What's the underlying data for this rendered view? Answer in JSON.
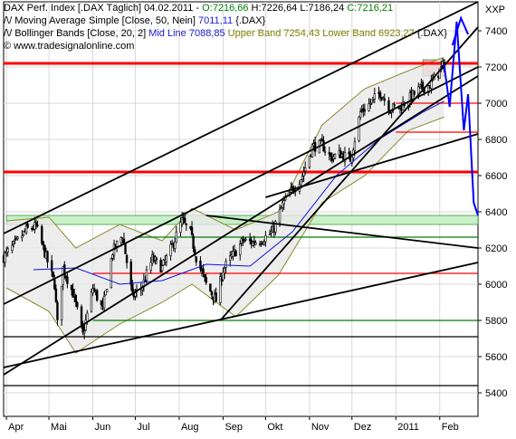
{
  "legend": {
    "line1": {
      "name": "DAX Perf. Index [.DAX Täglich] 04.02.2011 - ",
      "open": "O:7216,66",
      "hl": " H:7226,64 L:7186,24 ",
      "close": "C:7216,21"
    },
    "line2": {
      "name": "/\\/ Moving Average Simple [Close, 50, Nein] ",
      "value": "7011,11",
      "suffix": " {.DAX}"
    },
    "line3": {
      "name": "/\\/ Bollinger Bands [Close, 20, 2] ",
      "mid": "Mid Line 7088,85",
      "upper": " Upper Band 7254,43",
      "lower": " Lower Band 6923,27",
      "suffix": " {.DAX}"
    },
    "line4": "© www.tradesignalonline.com"
  },
  "colors": {
    "candle": "#000000",
    "band_fill": "#e8e8e8",
    "band_line": "#8a8a30",
    "sma": "#1010e0",
    "support_red": "#ff0000",
    "support_green": "#008000",
    "green_zone": "#c8f0c8",
    "trend_black": "#000000",
    "forecast": "#0000ff",
    "pink_zone": "#f4b0b0",
    "grid": "#d8d8d8"
  },
  "chart_data": {
    "type": "candlestick",
    "instrument": "DAX Perf. Index",
    "y_axis": {
      "label": "XXP",
      "ticks": [
        5400,
        5600,
        5800,
        6000,
        6200,
        6400,
        6600,
        6800,
        7000,
        7200,
        7400
      ],
      "tick_labels": [
        "5400",
        "5600",
        "5800",
        "6000",
        "6200",
        "6400",
        "6600",
        "6800",
        "7000",
        "7200",
        "7400"
      ],
      "ylim": [
        5270,
        7560
      ]
    },
    "x_axis": {
      "labels": [
        "Apr",
        "Mai",
        "Jun",
        "Jul",
        "Aug",
        "Sep",
        "Okt",
        "Nov",
        "Dez",
        "2011",
        "Feb"
      ]
    },
    "close_path": [
      [
        "2010-03-30",
        6150
      ],
      [
        "2010-04-08",
        6230
      ],
      [
        "2010-04-15",
        6300
      ],
      [
        "2010-04-22",
        6320
      ],
      [
        "2010-04-29",
        6150
      ],
      [
        "2010-05-05",
        6000
      ],
      [
        "2010-05-07",
        5780
      ],
      [
        "2010-05-11",
        6090
      ],
      [
        "2010-05-18",
        5950
      ],
      [
        "2010-05-25",
        5720
      ],
      [
        "2010-06-01",
        5980
      ],
      [
        "2010-06-08",
        5860
      ],
      [
        "2010-06-15",
        6180
      ],
      [
        "2010-06-22",
        6270
      ],
      [
        "2010-06-29",
        5930
      ],
      [
        "2010-07-06",
        5990
      ],
      [
        "2010-07-13",
        6140
      ],
      [
        "2010-07-20",
        6090
      ],
      [
        "2010-07-27",
        6210
      ],
      [
        "2010-08-03",
        6350
      ],
      [
        "2010-08-09",
        6280
      ],
      [
        "2010-08-13",
        6150
      ],
      [
        "2010-08-20",
        6000
      ],
      [
        "2010-08-27",
        5910
      ],
      [
        "2010-09-01",
        6080
      ],
      [
        "2010-09-08",
        6160
      ],
      [
        "2010-09-15",
        6240
      ],
      [
        "2010-09-22",
        6230
      ],
      [
        "2010-09-29",
        6250
      ],
      [
        "2010-10-06",
        6290
      ],
      [
        "2010-10-13",
        6440
      ],
      [
        "2010-10-20",
        6520
      ],
      [
        "2010-10-27",
        6600
      ],
      [
        "2010-11-03",
        6760
      ],
      [
        "2010-11-10",
        6770
      ],
      [
        "2010-11-16",
        6700
      ],
      [
        "2010-11-23",
        6720
      ],
      [
        "2010-11-30",
        6690
      ],
      [
        "2010-12-07",
        6950
      ],
      [
        "2010-12-14",
        7000
      ],
      [
        "2010-12-21",
        7060
      ],
      [
        "2010-12-28",
        6970
      ],
      [
        "2011-01-04",
        6980
      ],
      [
        "2011-01-11",
        7030
      ],
      [
        "2011-01-18",
        7080
      ],
      [
        "2011-01-25",
        7100
      ],
      [
        "2011-02-01",
        7180
      ],
      [
        "2011-02-04",
        7216
      ]
    ],
    "sma_path": [
      [
        "2010-04-20",
        6080
      ],
      [
        "2010-05-20",
        6090
      ],
      [
        "2010-06-20",
        6000
      ],
      [
        "2010-07-20",
        6020
      ],
      [
        "2010-08-20",
        6110
      ],
      [
        "2010-09-20",
        6100
      ],
      [
        "2010-10-20",
        6290
      ],
      [
        "2010-11-20",
        6600
      ],
      [
        "2010-12-20",
        6800
      ],
      [
        "2011-01-20",
        6950
      ],
      [
        "2011-02-04",
        7011
      ]
    ],
    "bollinger_upper": [
      [
        "2010-04-01",
        6350
      ],
      [
        "2010-05-01",
        6370
      ],
      [
        "2010-05-20",
        6200
      ],
      [
        "2010-06-20",
        6330
      ],
      [
        "2010-07-20",
        6240
      ],
      [
        "2010-08-10",
        6420
      ],
      [
        "2010-09-10",
        6300
      ],
      [
        "2010-10-10",
        6400
      ],
      [
        "2010-11-10",
        6880
      ],
      [
        "2010-12-10",
        7080
      ],
      [
        "2011-01-10",
        7180
      ],
      [
        "2011-02-04",
        7254
      ]
    ],
    "bollinger_lower": [
      [
        "2010-04-01",
        5980
      ],
      [
        "2010-05-01",
        5850
      ],
      [
        "2010-05-20",
        5620
      ],
      [
        "2010-06-20",
        5780
      ],
      [
        "2010-07-20",
        5900
      ],
      [
        "2010-08-10",
        6000
      ],
      [
        "2010-09-10",
        5820
      ],
      [
        "2010-10-10",
        6050
      ],
      [
        "2010-11-10",
        6450
      ],
      [
        "2010-12-10",
        6600
      ],
      [
        "2011-01-10",
        6850
      ],
      [
        "2011-02-04",
        6923
      ]
    ],
    "horizontal_lines": [
      {
        "y": 7220,
        "color": "#ff0000",
        "width": "thick"
      },
      {
        "y": 6620,
        "color": "#ff0000",
        "width": "thick"
      },
      {
        "y": 7000,
        "color": "#ff0000",
        "width": "thin",
        "x0": "2011-01-01"
      },
      {
        "y": 6840,
        "color": "#ff0000",
        "width": "thin",
        "x0": "2011-01-01"
      },
      {
        "y": 6060,
        "color": "#ff0000",
        "width": "thin",
        "x0": "2010-06-01"
      },
      {
        "y": 6260,
        "color": "#008000",
        "width": "thin",
        "x0": "2010-07-01"
      },
      {
        "y": 5800,
        "color": "#008000",
        "width": "thin",
        "x0": "2010-06-01"
      },
      {
        "y": 5710,
        "color": "#000000",
        "width": "thin"
      },
      {
        "y": 5440,
        "color": "#000000",
        "width": "thin"
      }
    ],
    "zones": [
      {
        "y0": 6330,
        "y1": 6380,
        "color": "#c8f0c8",
        "x0": "2010-04-01"
      },
      {
        "y0": 7150,
        "y1": 7240,
        "color": "#f4b0b0",
        "x0": "2011-01-20",
        "x1": "2011-02-05"
      }
    ],
    "trend_lines": [
      [
        [
          "2010-03-30",
          6280
        ],
        [
          "2011-02-28",
          7560
        ]
      ],
      [
        [
          "2010-03-30",
          5890
        ],
        [
          "2011-02-28",
          7200
        ]
      ],
      [
        [
          "2010-03-30",
          5540
        ],
        [
          "2011-02-28",
          6120
        ]
      ],
      [
        [
          "2010-03-30",
          5500
        ],
        [
          "2011-02-28",
          7150
        ]
      ],
      [
        [
          "2010-08-20",
          6380
        ],
        [
          "2011-02-28",
          6200
        ]
      ],
      [
        [
          "2010-08-30",
          5800
        ],
        [
          "2011-02-28",
          7420
        ]
      ],
      [
        [
          "2010-10-01",
          6480
        ],
        [
          "2011-02-28",
          6830
        ]
      ]
    ],
    "forecast_path": [
      [
        "2011-02-04",
        7216
      ],
      [
        "2011-02-08",
        6980
      ],
      [
        "2011-02-13",
        7450
      ],
      [
        "2011-02-18",
        6850
      ],
      [
        "2011-02-21",
        7050
      ],
      [
        "2011-02-25",
        6450
      ],
      [
        "2011-02-28",
        6380
      ]
    ],
    "forecast_path2": [
      [
        "2011-02-10",
        7320
      ],
      [
        "2011-02-16",
        7470
      ],
      [
        "2011-02-21",
        7380
      ]
    ]
  }
}
